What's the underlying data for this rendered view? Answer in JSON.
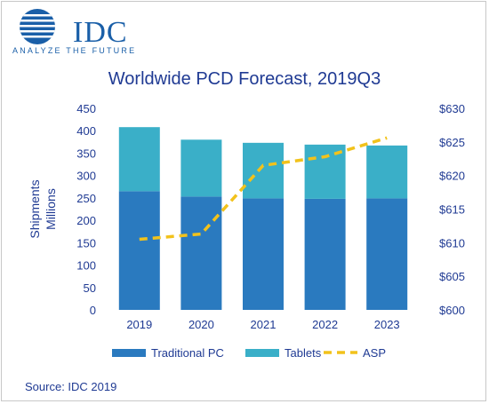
{
  "logo": {
    "brand": "IDC",
    "tagline": "ANALYZE THE FUTURE"
  },
  "source": "Source: IDC 2019",
  "colors": {
    "traditional": "#2a7abf",
    "tablets": "#3aafc8",
    "asp": "#f2c21b",
    "text": "#1f3a93"
  },
  "chart_data": {
    "type": "bar",
    "stacked": true,
    "title": "Worldwide PCD Forecast, 2019Q3",
    "categories": [
      "2019",
      "2020",
      "2021",
      "2022",
      "2023"
    ],
    "ylabel": [
      "Shipments",
      "Millions"
    ],
    "ylim": [
      0,
      450
    ],
    "yticks": [
      0,
      50,
      100,
      150,
      200,
      250,
      300,
      350,
      400,
      450
    ],
    "y2lim": [
      600,
      630
    ],
    "y2ticks": [
      "$600",
      "$605",
      "$610",
      "$615",
      "$620",
      "$625",
      "$630"
    ],
    "grid": false,
    "legend_position": "bottom",
    "series": [
      {
        "name": "Traditional PC",
        "type": "bar",
        "axis": "left",
        "values": [
          265,
          253,
          249,
          248,
          249
        ]
      },
      {
        "name": "Tablets",
        "type": "bar",
        "axis": "left",
        "values": [
          143,
          127,
          124,
          121,
          118
        ]
      },
      {
        "name": "ASP",
        "type": "line",
        "axis": "right",
        "dashed": true,
        "values": [
          610.5,
          611.3,
          621.5,
          622.8,
          625.6
        ]
      }
    ]
  }
}
